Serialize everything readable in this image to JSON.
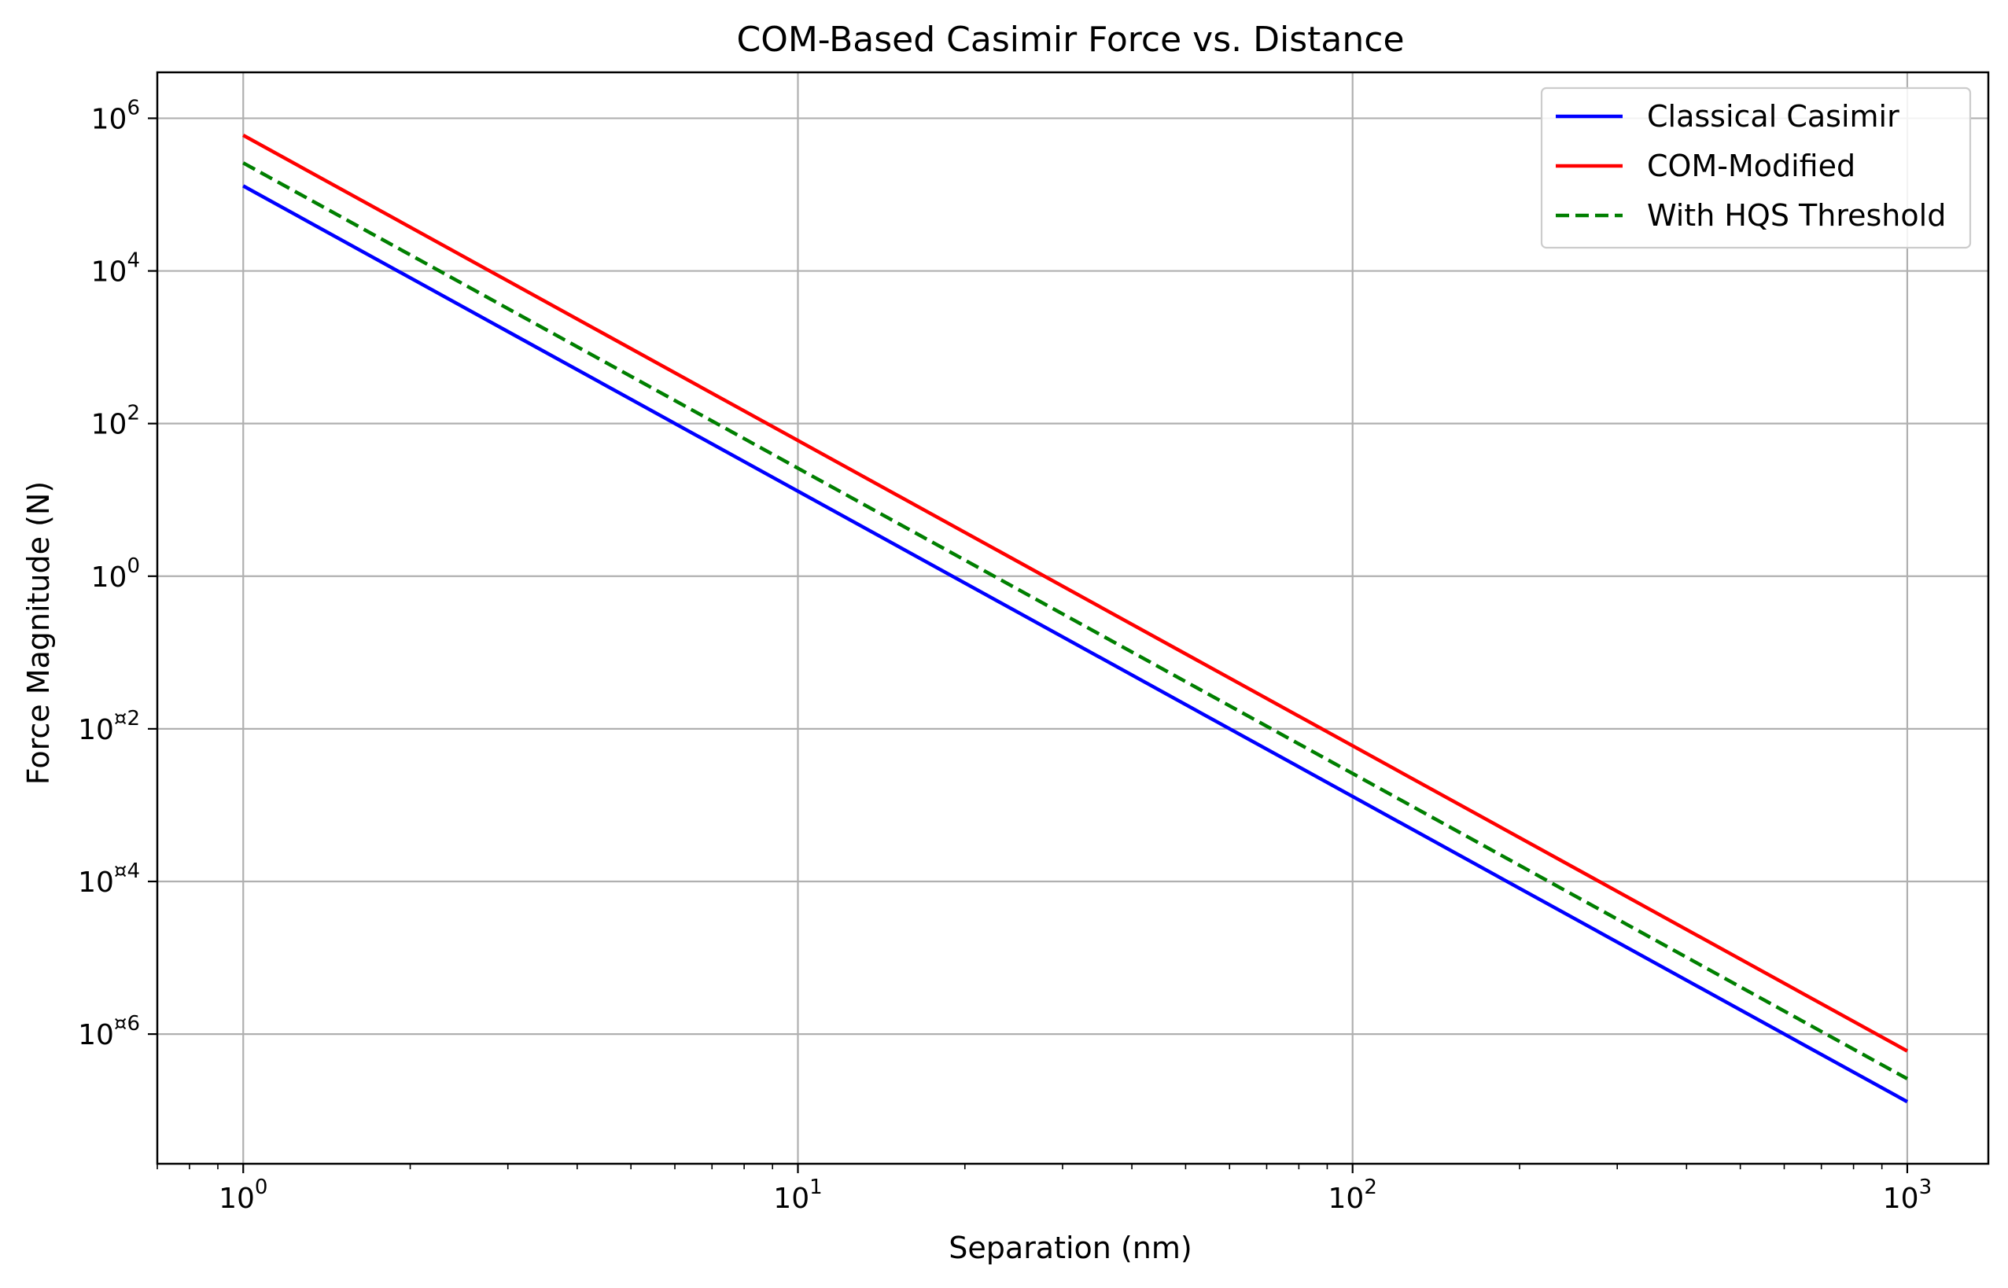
{
  "chart_data": {
    "type": "line",
    "title": "COM-Based Casimir Force vs. Distance",
    "xlabel": "Separation (nm)",
    "ylabel": "Force Magnitude (N)",
    "xscale": "log",
    "yscale": "log",
    "xlim": [
      0.7,
      1400
    ],
    "ylim": [
      2e-08,
      4000000.0
    ],
    "grid": true,
    "legend_position": "top-right",
    "x_ticks": [
      {
        "value": 1,
        "base": "10",
        "exp": "0"
      },
      {
        "value": 10,
        "base": "10",
        "exp": "1"
      },
      {
        "value": 100,
        "base": "10",
        "exp": "2"
      },
      {
        "value": 1000,
        "base": "10",
        "exp": "3"
      }
    ],
    "y_ticks": [
      {
        "value": 1000000.0,
        "base": "10",
        "exp": "6"
      },
      {
        "value": 10000.0,
        "base": "10",
        "exp": "4"
      },
      {
        "value": 100,
        "base": "10",
        "exp": "2"
      },
      {
        "value": 1,
        "base": "10",
        "exp": "0"
      },
      {
        "value": 0.01,
        "base": "10",
        "exp": "¤2"
      },
      {
        "value": 0.0001,
        "base": "10",
        "exp": "¤4"
      },
      {
        "value": 1e-06,
        "base": "10",
        "exp": "¤6"
      }
    ],
    "series": [
      {
        "name": "Classical Casimir",
        "color": "#0000ff",
        "dash": "solid",
        "x": [
          1,
          1000
        ],
        "y": [
          130000,
          1.3e-07
        ]
      },
      {
        "name": "COM-Modified",
        "color": "#ff0000",
        "dash": "solid",
        "x": [
          1,
          1000
        ],
        "y": [
          600000,
          6e-07
        ]
      },
      {
        "name": "With HQS Threshold",
        "color": "#007f00",
        "dash": "dashed",
        "x": [
          1,
          1000
        ],
        "y": [
          260000,
          2.6e-07
        ]
      }
    ]
  }
}
